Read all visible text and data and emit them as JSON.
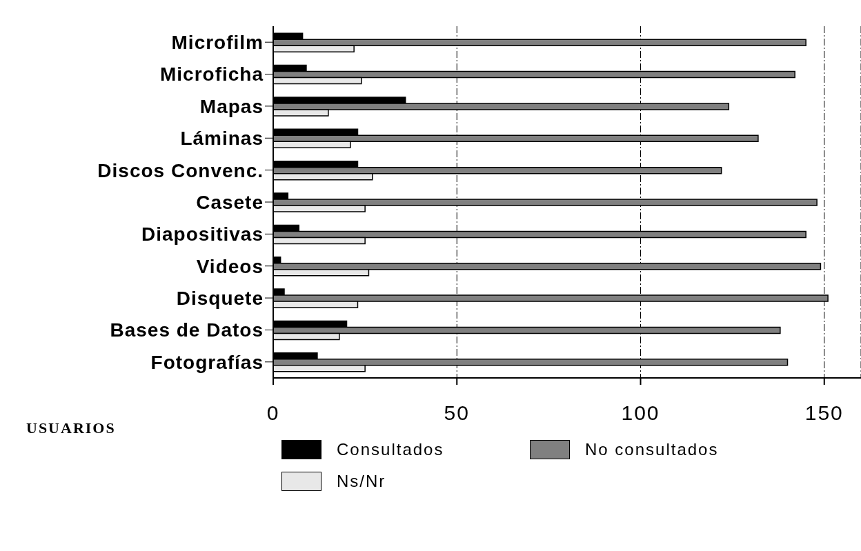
{
  "chart_data": {
    "type": "bar",
    "orientation": "horizontal",
    "xlabel": "USUARIOS",
    "categories": [
      "Microfilm",
      "Microficha",
      "Mapas",
      "Láminas",
      "Discos Convenc.",
      "Casete",
      "Diapositivas",
      "Videos",
      "Disquete",
      "Bases de Datos",
      "Fotografías"
    ],
    "series": [
      {
        "name": "Consultados",
        "color": "#000000",
        "values": [
          8,
          9,
          36,
          23,
          23,
          4,
          7,
          2,
          3,
          20,
          12
        ]
      },
      {
        "name": "No consultados",
        "color": "#808080",
        "values": [
          145,
          142,
          124,
          132,
          122,
          148,
          145,
          149,
          151,
          138,
          140
        ]
      },
      {
        "name": "Ns/Nr",
        "color": "#e8e8e8",
        "values": [
          22,
          24,
          15,
          21,
          27,
          25,
          25,
          26,
          23,
          18,
          25
        ]
      }
    ],
    "xlim": [
      0,
      160
    ],
    "xticks": [
      0,
      50,
      100,
      150
    ],
    "grid": "x",
    "legend": "bottom"
  }
}
